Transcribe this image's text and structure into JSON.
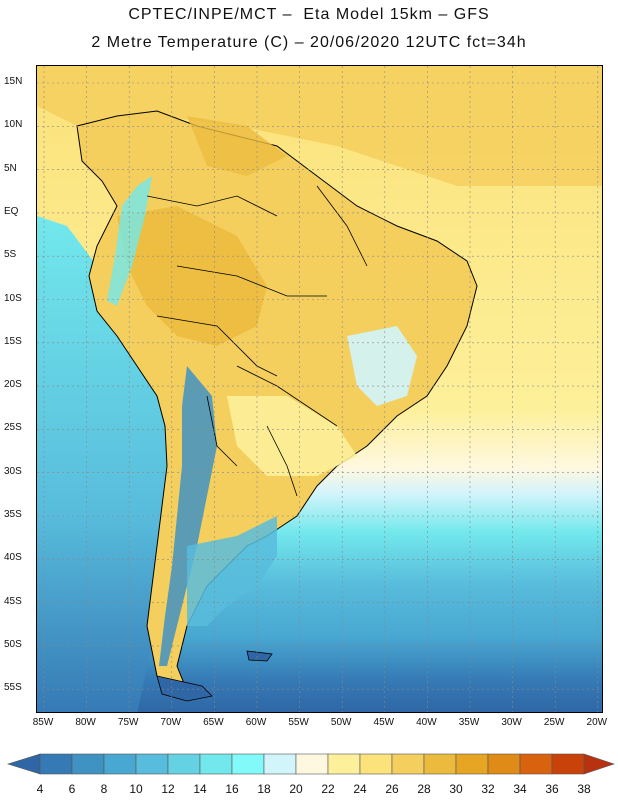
{
  "header": {
    "line1": "CPTEC/INPE/MCT –  Eta Model 15km – GFS",
    "line2": "2 Metre Temperature (C) – 20/06/2020 12UTC fct=34h"
  },
  "map": {
    "lat_labels": [
      "15N",
      "10N",
      "5N",
      "EQ",
      "5S",
      "10S",
      "15S",
      "20S",
      "25S",
      "30S",
      "35S",
      "40S",
      "45S",
      "50S",
      "55S"
    ],
    "lon_labels": [
      "85W",
      "80W",
      "75W",
      "70W",
      "65W",
      "60W",
      "55W",
      "50W",
      "45W",
      "40W",
      "35W",
      "30W",
      "25W",
      "20W"
    ]
  },
  "colorbar": {
    "levels": [
      "4",
      "6",
      "8",
      "10",
      "12",
      "14",
      "16",
      "18",
      "20",
      "22",
      "24",
      "26",
      "28",
      "30",
      "32",
      "34",
      "36",
      "38"
    ],
    "colors": [
      "#2f66a5",
      "#3579b5",
      "#3f93c3",
      "#49a8d1",
      "#58bcdc",
      "#65d2e4",
      "#72e8ec",
      "#82fafa",
      "#d2f4fb",
      "#fff8e0",
      "#fdf09a",
      "#fbe27a",
      "#f4cf5e",
      "#ecbb3e",
      "#e6a522",
      "#e08a18",
      "#d8620e",
      "#c8420a",
      "#b83210"
    ]
  },
  "palette": {
    "ocean_deep": "#2f66a5",
    "ocean_mid": "#49a8d1",
    "ocean_light": "#72e8ec",
    "warm_low": "#fbe27a",
    "warm_high": "#ecbb3e",
    "border": "#000000"
  }
}
